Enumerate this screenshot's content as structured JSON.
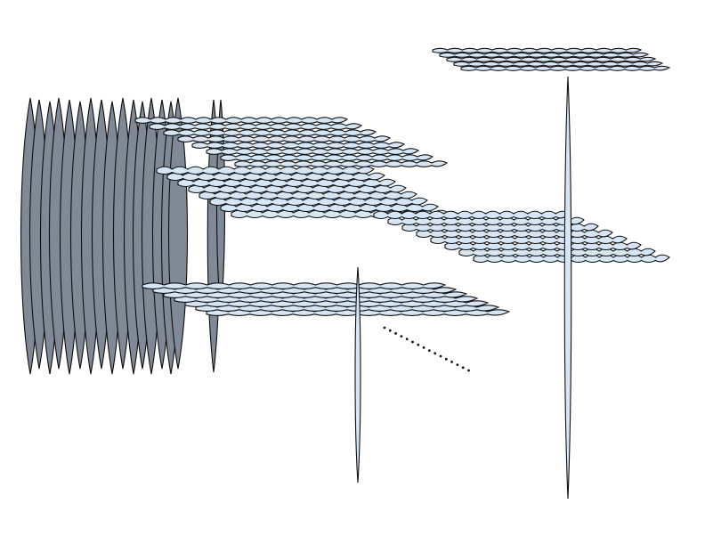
{
  "figure": {
    "description_free": true,
    "colors": {
      "cloud_fill": "#d6e6f5",
      "outline": "#111111",
      "dark_fill": "#7f8a96",
      "background": "#ffffff"
    }
  }
}
